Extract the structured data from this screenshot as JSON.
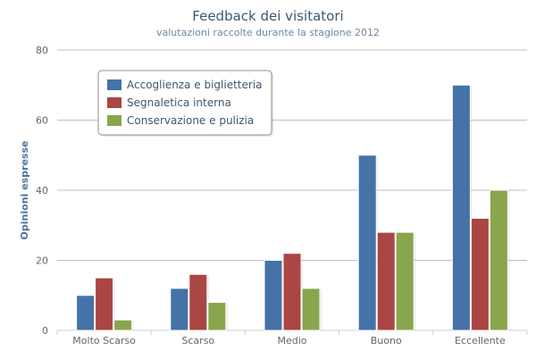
{
  "chart_data": {
    "type": "bar",
    "title": "Feedback dei visitatori",
    "subtitle": "valutazioni raccolte durante la stagione 2012",
    "xlabel": "",
    "ylabel": "Opinioni espresse",
    "ylim": [
      0,
      80
    ],
    "yticks": [
      0,
      20,
      40,
      60,
      80
    ],
    "grid": true,
    "legend_position": "top-left",
    "categories": [
      "Molto Scarso",
      "Scarso",
      "Medio",
      "Buono",
      "Eccellente"
    ],
    "series": [
      {
        "name": "Accoglienza e biglietteria",
        "color": "#4572a7",
        "values": [
          10,
          12,
          20,
          50,
          70
        ]
      },
      {
        "name": "Segnaletica interna",
        "color": "#aa4643",
        "values": [
          15,
          16,
          22,
          28,
          32
        ]
      },
      {
        "name": "Conservazione e pulizia",
        "color": "#89a54e",
        "values": [
          3,
          8,
          12,
          28,
          40
        ]
      }
    ]
  }
}
